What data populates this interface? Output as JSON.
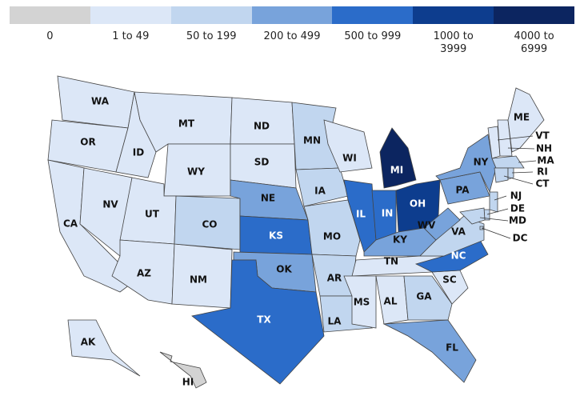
{
  "legend": [
    {
      "label": "0",
      "color": "#d3d3d3"
    },
    {
      "label": "1 to 49",
      "color": "#dce7f7"
    },
    {
      "label": "50 to 199",
      "color": "#c1d6ef"
    },
    {
      "label": "200 to 499",
      "color": "#78a3db"
    },
    {
      "label": "500 to 999",
      "color": "#2b6cc9"
    },
    {
      "label": "1000 to\n3999",
      "color": "#0d3d8e"
    },
    {
      "label": "4000 to\n6999",
      "color": "#0c2560"
    }
  ],
  "states": [
    {
      "label": "WA",
      "bin": 1
    },
    {
      "label": "OR",
      "bin": 1
    },
    {
      "label": "CA",
      "bin": 1
    },
    {
      "label": "NV",
      "bin": 1
    },
    {
      "label": "ID",
      "bin": 1
    },
    {
      "label": "MT",
      "bin": 1
    },
    {
      "label": "WY",
      "bin": 1
    },
    {
      "label": "UT",
      "bin": 1
    },
    {
      "label": "AZ",
      "bin": 1
    },
    {
      "label": "NM",
      "bin": 1
    },
    {
      "label": "CO",
      "bin": 2
    },
    {
      "label": "ND",
      "bin": 1
    },
    {
      "label": "SD",
      "bin": 1
    },
    {
      "label": "NE",
      "bin": 3
    },
    {
      "label": "KS",
      "bin": 4
    },
    {
      "label": "OK",
      "bin": 3
    },
    {
      "label": "TX",
      "bin": 4
    },
    {
      "label": "MN",
      "bin": 2
    },
    {
      "label": "IA",
      "bin": 2
    },
    {
      "label": "MO",
      "bin": 2
    },
    {
      "label": "AR",
      "bin": 2
    },
    {
      "label": "LA",
      "bin": 2
    },
    {
      "label": "WI",
      "bin": 1
    },
    {
      "label": "IL",
      "bin": 4
    },
    {
      "label": "IN",
      "bin": 4
    },
    {
      "label": "MI",
      "bin": 6
    },
    {
      "label": "OH",
      "bin": 5
    },
    {
      "label": "KY",
      "bin": 3
    },
    {
      "label": "TN",
      "bin": 1
    },
    {
      "label": "MS",
      "bin": 1
    },
    {
      "label": "AL",
      "bin": 1
    },
    {
      "label": "GA",
      "bin": 2
    },
    {
      "label": "FL",
      "bin": 3
    },
    {
      "label": "SC",
      "bin": 1
    },
    {
      "label": "NC",
      "bin": 4
    },
    {
      "label": "VA",
      "bin": 2
    },
    {
      "label": "WV",
      "bin": 3
    },
    {
      "label": "PA",
      "bin": 3
    },
    {
      "label": "NY",
      "bin": 3
    },
    {
      "label": "VT",
      "bin": 1
    },
    {
      "label": "NH",
      "bin": 1
    },
    {
      "label": "ME",
      "bin": 1
    },
    {
      "label": "MA",
      "bin": 2
    },
    {
      "label": "CT",
      "bin": 2
    },
    {
      "label": "RI",
      "bin": 2
    },
    {
      "label": "NJ",
      "bin": 2
    },
    {
      "label": "DE",
      "bin": 2
    },
    {
      "label": "MD",
      "bin": 2
    },
    {
      "label": "DC",
      "bin": 2
    },
    {
      "label": "AK",
      "bin": 1
    },
    {
      "label": "HI",
      "bin": 0
    }
  ]
}
